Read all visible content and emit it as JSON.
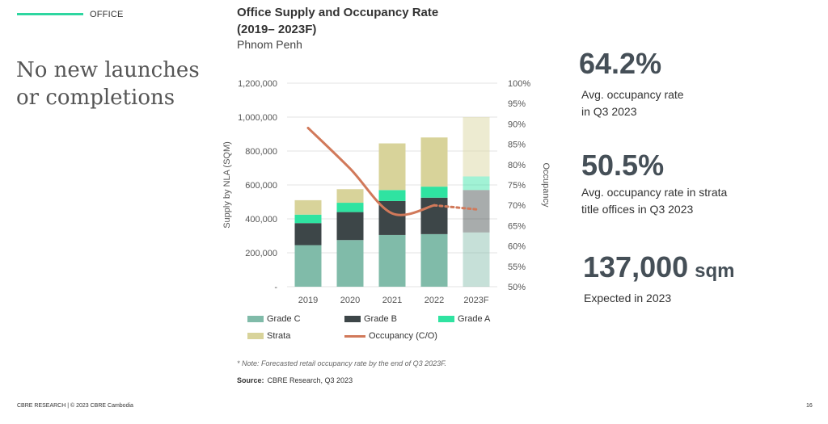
{
  "section": {
    "label": "OFFICE"
  },
  "headline": "No new launches or completions",
  "chart_title_line1": "Office Supply and Occupancy Rate",
  "chart_title_line2": "(2019– 2023F)",
  "chart_subtitle": "Phnom Penh",
  "stats": [
    {
      "value": "64.2%",
      "unit": "",
      "desc1": "Avg. occupancy rate",
      "desc2": "in Q3 2023"
    },
    {
      "value": "50.5%",
      "unit": "",
      "desc1": "Avg. occupancy rate in strata",
      "desc2": "title offices in Q3 2023"
    },
    {
      "value": "137,000",
      "unit": "sqm",
      "desc1": "Expected in 2023",
      "desc2": ""
    }
  ],
  "note": "* Note: Forecasted retail occupancy rate by the end of Q3 2023F.",
  "source_label": "Source:",
  "source_text": "CBRE Research, Q3 2023",
  "footer": "CBRE RESEARCH | © 2023 CBRE Cambodia",
  "page_number": "16",
  "colors": {
    "grade_c": "#80bba9",
    "grade_b": "#3d4648",
    "grade_a": "#2fe3a1",
    "strata": "#d8d39a",
    "occupancy": "#d1795a",
    "accent": "#2ed6a0"
  },
  "chart_data": {
    "type": "bar",
    "stacked": true,
    "categories": [
      "2019",
      "2020",
      "2021",
      "2022",
      "2023F"
    ],
    "forecast_category": "2023F",
    "series": [
      {
        "name": "Grade C",
        "values": [
          245000,
          275000,
          305000,
          310000,
          320000
        ]
      },
      {
        "name": "Grade B",
        "values": [
          130000,
          165000,
          200000,
          215000,
          250000
        ]
      },
      {
        "name": "Grade A",
        "values": [
          50000,
          55000,
          65000,
          65000,
          80000
        ]
      },
      {
        "name": "Strata",
        "values": [
          85000,
          80000,
          275000,
          290000,
          350000
        ]
      }
    ],
    "line_series": {
      "name": "Occupancy (C/O)",
      "values": [
        0.89,
        0.79,
        0.68,
        0.7,
        0.69
      ],
      "forecast_from_index": 3
    },
    "ylabel": "Supply by NLA (SQM)",
    "y2label": "Occupancy",
    "ylim": [
      0,
      1200000
    ],
    "y2lim": [
      0.5,
      1.0
    ],
    "yticks": [
      "-",
      "200,000",
      "400,000",
      "600,000",
      "800,000",
      "1,000,000",
      "1,200,000"
    ],
    "y2ticks": [
      "50%",
      "55%",
      "60%",
      "65%",
      "70%",
      "75%",
      "80%",
      "85%",
      "90%",
      "95%",
      "100%"
    ],
    "grid": true,
    "legend_position": "bottom"
  }
}
